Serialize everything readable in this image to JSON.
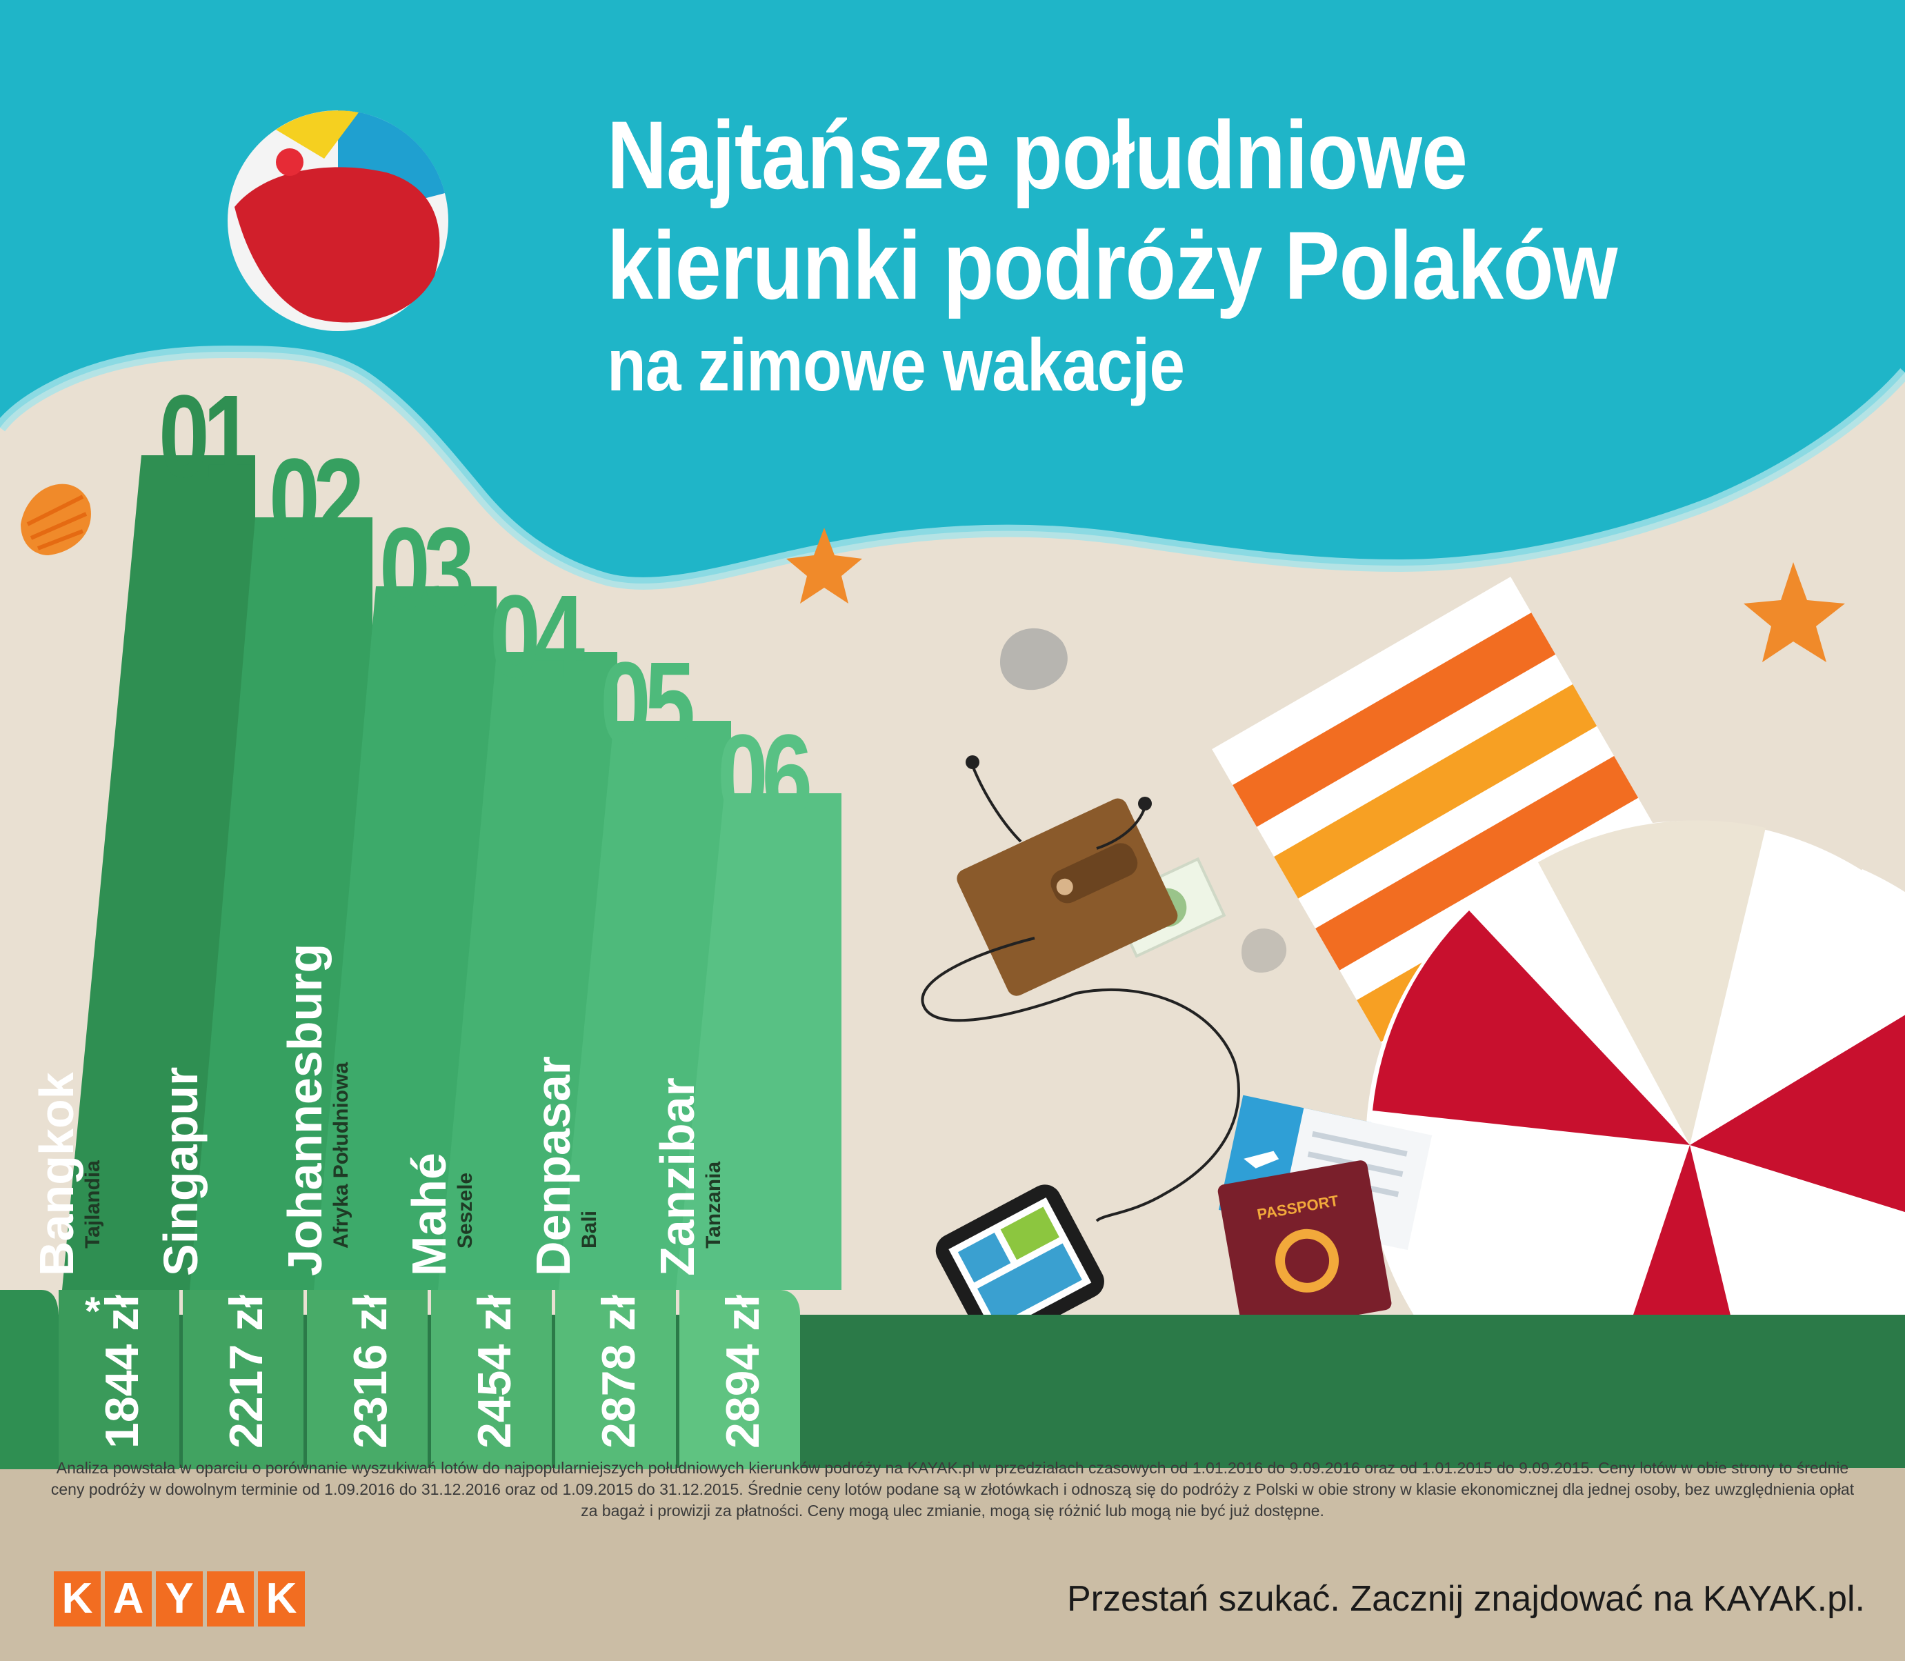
{
  "title": {
    "line1": "Najtańsze południowe",
    "line2": "kierunki podróży Polaków",
    "line3": "na zimowe wakacje"
  },
  "colors": {
    "sea": "#1fb5c8",
    "sand": "#e9e0d2",
    "green_dark": "#2b7a48",
    "green_strip": "#36a060",
    "accent_orange": "#f26d21",
    "umbrella_red": "#c8102e"
  },
  "destinations": [
    {
      "rank": "01",
      "city": "Bangkok",
      "country": "Tajlandia",
      "price": "1844 zł"
    },
    {
      "rank": "02",
      "city": "Singapur",
      "country": "",
      "price": "2217 zł"
    },
    {
      "rank": "03",
      "city": "Johannesburg",
      "country": "Afryka Południowa",
      "price": "2316 zł"
    },
    {
      "rank": "04",
      "city": "Mahé",
      "country": "Seszele",
      "price": "2454 zł"
    },
    {
      "rank": "05",
      "city": "Denpasar",
      "country": "Bali",
      "price": "2878 zł"
    },
    {
      "rank": "06",
      "city": "Zanzibar",
      "country": "Tanzania",
      "price": "2894 zł"
    }
  ],
  "price_note_marker": "*",
  "passport_label": "PASSPORT",
  "disclaimer": "Analiza powstała w oparciu o porównanie wyszukiwań lotów do najpopularniejszych południowych kierunków podróży na KAYAK.pl w przedziałach czasowych od 1.01.2016 do 9.09.2016 oraz od 1.01.2015 do 9.09.2015. Ceny lotów w obie strony to średnie ceny podróży w dowolnym terminie od 1.09.2016 do 31.12.2016 oraz od 1.09.2015 do 31.12.2015. Średnie ceny lotów podane są w złotówkach i odnoszą się do podróży z Polski w obie strony w klasie ekonomicznej dla jednej osoby, bez uwzględnienia opłat za bagaż i prowizji za płatności. Ceny mogą ulec zmianie, mogą się różnić lub mogą nie być już dostępne.",
  "logo": {
    "letters": [
      "K",
      "A",
      "Y",
      "A",
      "K"
    ]
  },
  "tagline": "Przestań szukać. Zacznij znajdować na KAYAK.pl."
}
